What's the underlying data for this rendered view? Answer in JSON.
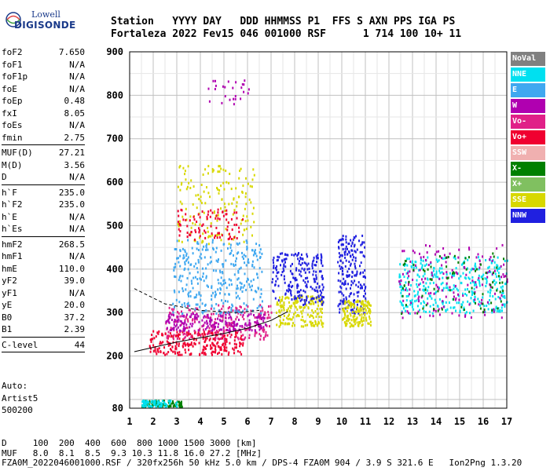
{
  "logo": {
    "line1": "Lowell",
    "line2": "DIGISONDE"
  },
  "header": {
    "row1": "Station   YYYY DAY   DDD HHMMSS P1  FFS S AXN PPS IGA PS",
    "row2": "Fortaleza 2022 Fev15 046 001000 RSF      1 714 100 10+ 11"
  },
  "params": {
    "group1": [
      {
        "k": "foF2",
        "v": "7.650"
      },
      {
        "k": "foF1",
        "v": "N/A"
      },
      {
        "k": "foF1p",
        "v": "N/A"
      },
      {
        "k": "foE",
        "v": "N/A"
      },
      {
        "k": "foEp",
        "v": "0.48"
      },
      {
        "k": "fxI",
        "v": "8.05"
      },
      {
        "k": "foEs",
        "v": "N/A"
      },
      {
        "k": "fmin",
        "v": "2.75"
      }
    ],
    "group2": [
      {
        "k": "MUF(D)",
        "v": "27.21"
      },
      {
        "k": "M(D)",
        "v": "3.56"
      },
      {
        "k": "D",
        "v": "N/A"
      }
    ],
    "group3": [
      {
        "k": "h`F",
        "v": "235.0"
      },
      {
        "k": "h`F2",
        "v": "235.0"
      },
      {
        "k": "h`E",
        "v": "N/A"
      },
      {
        "k": "h`Es",
        "v": "N/A"
      }
    ],
    "group4": [
      {
        "k": "hmF2",
        "v": "268.5"
      },
      {
        "k": "hmF1",
        "v": "N/A"
      },
      {
        "k": "hmE",
        "v": "110.0"
      },
      {
        "k": "yF2",
        "v": "39.0"
      },
      {
        "k": "yF1",
        "v": "N/A"
      },
      {
        "k": "yE",
        "v": "20.0"
      },
      {
        "k": "B0",
        "v": "37.2"
      },
      {
        "k": "B1",
        "v": "2.39"
      }
    ],
    "group5": [
      {
        "k": "C-level",
        "v": "44"
      }
    ]
  },
  "auto": {
    "line1": "Auto:",
    "line2": "Artist5",
    "line3": "500200"
  },
  "legend": [
    {
      "label": "NoVal",
      "color": "#808080"
    },
    {
      "label": "NNE",
      "color": "#00e0f0"
    },
    {
      "label": "E",
      "color": "#40a8f0"
    },
    {
      "label": "W",
      "color": "#b000b0"
    },
    {
      "label": "Vo-",
      "color": "#e02088"
    },
    {
      "label": "Vo+",
      "color": "#f00030"
    },
    {
      "label": "SSW",
      "color": "#f0b0b0"
    },
    {
      "label": "X-",
      "color": "#008000"
    },
    {
      "label": "X+",
      "color": "#80c060"
    },
    {
      "label": "SSE",
      "color": "#d8d800"
    },
    {
      "label": "NNW",
      "color": "#2020e0"
    }
  ],
  "footer": {
    "row1": "D     100  200  400  600  800 1000 1500 3000 [km]",
    "row2": "MUF   8.0  8.1  8.5  9.3 10.3 11.8 16.0 27.2 [MHz]",
    "row3": "FZA0M_2022046001000.RSF / 320fx256h 50 kHz 5.0 km / DPS-4 FZA0M 904 / 3.9 S 321.6 E   Ion2Png 1.3.20"
  },
  "chart_data": {
    "type": "scatter",
    "xlim": [
      1,
      17
    ],
    "ylim": [
      80,
      900
    ],
    "x_ticks": [
      1,
      2,
      3,
      4,
      5,
      6,
      7,
      8,
      9,
      10,
      11,
      12,
      13,
      14,
      15,
      16,
      17
    ],
    "y_ticks": [
      80,
      200,
      300,
      400,
      500,
      600,
      700,
      800,
      900
    ],
    "grid": true,
    "clusters": [
      {
        "mode": "Vo+",
        "x": [
          1.8,
          5.8
        ],
        "y": [
          205,
          260
        ],
        "n": 260
      },
      {
        "mode": "Vo-",
        "x": [
          2.5,
          7.0
        ],
        "y": [
          240,
          320
        ],
        "n": 220
      },
      {
        "mode": "W",
        "x": [
          2.5,
          6.8
        ],
        "y": [
          260,
          300
        ],
        "n": 200
      },
      {
        "mode": "E",
        "x": [
          2.8,
          6.6
        ],
        "y": [
          300,
          470
        ],
        "n": 320
      },
      {
        "mode": "SSE",
        "x": [
          7.2,
          9.2
        ],
        "y": [
          270,
          340
        ],
        "n": 180
      },
      {
        "mode": "NNW",
        "x": [
          7.0,
          9.2
        ],
        "y": [
          320,
          440
        ],
        "n": 220
      },
      {
        "mode": "NNW",
        "x": [
          9.8,
          11.0
        ],
        "y": [
          300,
          480
        ],
        "n": 200
      },
      {
        "mode": "SSE",
        "x": [
          10.0,
          11.2
        ],
        "y": [
          270,
          330
        ],
        "n": 160
      },
      {
        "mode": "NNE",
        "x": [
          12.4,
          17.0
        ],
        "y": [
          300,
          430
        ],
        "n": 360
      },
      {
        "mode": "W",
        "x": [
          12.4,
          17.0
        ],
        "y": [
          290,
          460
        ],
        "n": 160
      },
      {
        "mode": "X-",
        "x": [
          12.4,
          17.0
        ],
        "y": [
          300,
          440
        ],
        "n": 80
      },
      {
        "mode": "SSE",
        "x": [
          3.0,
          6.3
        ],
        "y": [
          460,
          640
        ],
        "n": 160
      },
      {
        "mode": "Vo+",
        "x": [
          3.0,
          5.8
        ],
        "y": [
          470,
          540
        ],
        "n": 90
      },
      {
        "mode": "W",
        "x": [
          4.3,
          6.1
        ],
        "y": [
          780,
          840
        ],
        "n": 26
      },
      {
        "mode": "X-",
        "x": [
          1.5,
          3.2
        ],
        "y": [
          85,
          100
        ],
        "n": 90
      },
      {
        "mode": "NNE",
        "x": [
          1.5,
          3.0
        ],
        "y": [
          85,
          100
        ],
        "n": 70
      }
    ],
    "curves": [
      {
        "style": "dashed",
        "x": [
          1.2,
          2.5,
          4,
          5.5,
          6.5
        ],
        "y": [
          355,
          320,
          305,
          300,
          305
        ]
      },
      {
        "style": "solid",
        "x": [
          1.2,
          2.0,
          3.0,
          4.0,
          5.0,
          6.0,
          7.0,
          7.7
        ],
        "y": [
          210,
          220,
          232,
          242,
          252,
          264,
          282,
          302
        ]
      }
    ]
  }
}
